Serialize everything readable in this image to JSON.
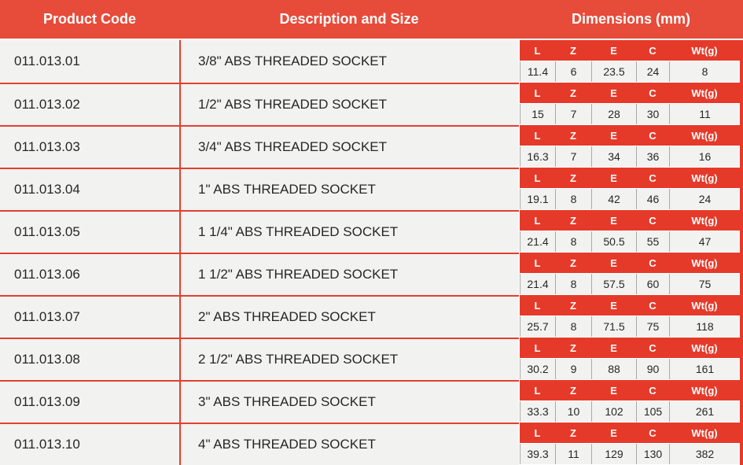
{
  "colors": {
    "header_red": "#e74b3a",
    "dim_red": "#e53a2a",
    "line_red": "#e2402e",
    "row_bg": "#f2f2f1",
    "divider_gray": "#a9a9a9",
    "text_dark": "#262626",
    "header_text": "#ffffff"
  },
  "table": {
    "headers": [
      "Product Code",
      "Description and Size",
      "Dimensions (mm)"
    ],
    "dim_headers": [
      "L",
      "Z",
      "E",
      "C",
      "Wt(g)"
    ],
    "rows": [
      {
        "code": "011.013.01",
        "description": "3/8\" ABS THREADED SOCKET",
        "dims": [
          "11.4",
          "6",
          "23.5",
          "24",
          "8"
        ]
      },
      {
        "code": "011.013.02",
        "description": "1/2\" ABS THREADED SOCKET",
        "dims": [
          "15",
          "7",
          "28",
          "30",
          "11"
        ]
      },
      {
        "code": "011.013.03",
        "description": "3/4\" ABS THREADED SOCKET",
        "dims": [
          "16.3",
          "7",
          "34",
          "36",
          "16"
        ]
      },
      {
        "code": "011.013.04",
        "description": "1\" ABS THREADED SOCKET",
        "dims": [
          "19.1",
          "8",
          "42",
          "46",
          "24"
        ]
      },
      {
        "code": "011.013.05",
        "description": "1 1/4\" ABS THREADED SOCKET",
        "dims": [
          "21.4",
          "8",
          "50.5",
          "55",
          "47"
        ]
      },
      {
        "code": "011.013.06",
        "description": "1 1/2\" ABS THREADED SOCKET",
        "dims": [
          "21.4",
          "8",
          "57.5",
          "60",
          "75"
        ]
      },
      {
        "code": "011.013.07",
        "description": "2\" ABS THREADED SOCKET",
        "dims": [
          "25.7",
          "8",
          "71.5",
          "75",
          "118"
        ]
      },
      {
        "code": "011.013.08",
        "description": "2 1/2\" ABS THREADED SOCKET",
        "dims": [
          "30.2",
          "9",
          "88",
          "90",
          "161"
        ]
      },
      {
        "code": "011.013.09",
        "description": "3\" ABS THREADED SOCKET",
        "dims": [
          "33.3",
          "10",
          "102",
          "105",
          "261"
        ]
      },
      {
        "code": "011.013.10",
        "description": "4\" ABS THREADED SOCKET",
        "dims": [
          "39.3",
          "11",
          "129",
          "130",
          "382"
        ]
      }
    ]
  }
}
